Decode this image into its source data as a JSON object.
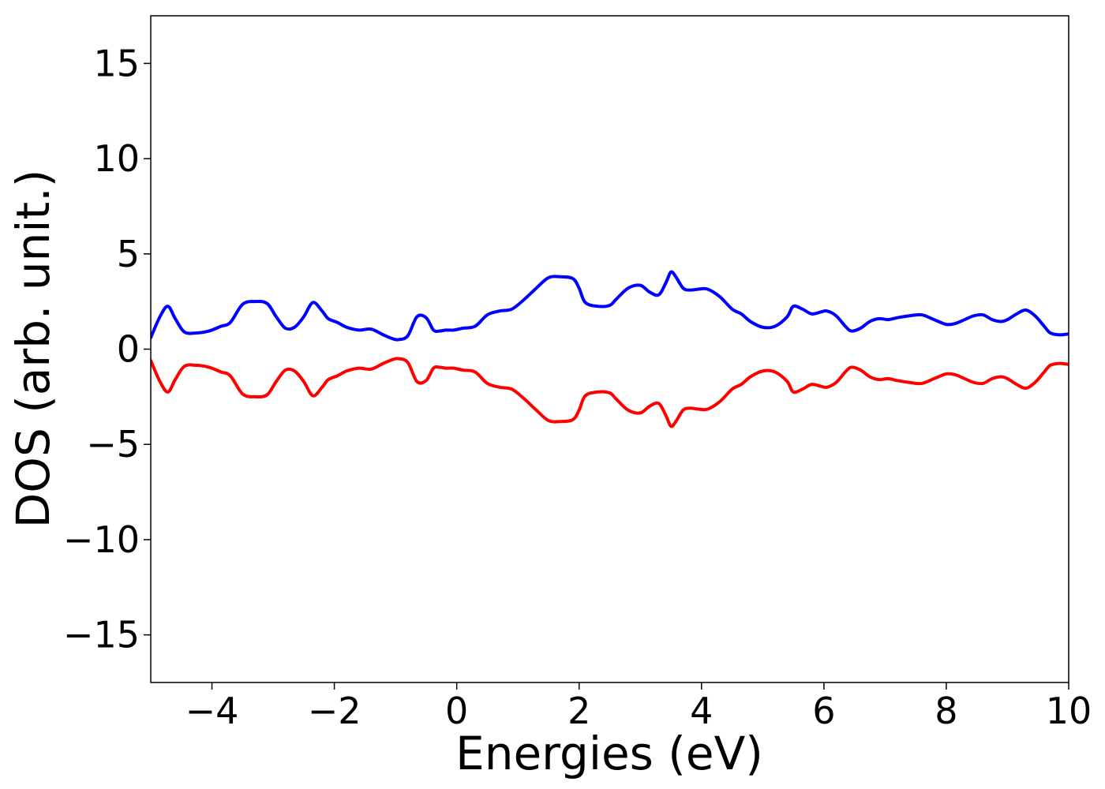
{
  "chart_data": {
    "type": "line",
    "title": "",
    "xlabel": "Energies (eV)",
    "ylabel": "DOS (arb. unit.)",
    "xlim": [
      -5,
      10
    ],
    "ylim": [
      -17.5,
      17.5
    ],
    "xticks": [
      -4,
      -2,
      0,
      2,
      4,
      6,
      8,
      10
    ],
    "yticks": [
      -15,
      -10,
      -5,
      0,
      5,
      10,
      15
    ],
    "xtick_labels": [
      "−4",
      "−2",
      "0",
      "2",
      "4",
      "6",
      "8",
      "10"
    ],
    "ytick_labels": [
      "−15",
      "−10",
      "−5",
      "0",
      "5",
      "10",
      "15"
    ],
    "grid": false,
    "legend": "none",
    "series": [
      {
        "color": "#0000ff",
        "x": [
          -5.0,
          -4.85,
          -4.72,
          -4.6,
          -4.45,
          -4.25,
          -4.05,
          -3.85,
          -3.7,
          -3.5,
          -3.3,
          -3.1,
          -2.95,
          -2.8,
          -2.65,
          -2.5,
          -2.35,
          -2.2,
          -2.1,
          -1.95,
          -1.8,
          -1.6,
          -1.4,
          -1.2,
          -1.05,
          -0.95,
          -0.8,
          -0.65,
          -0.5,
          -0.38,
          -0.28,
          -0.18,
          -0.05,
          0.1,
          0.3,
          0.5,
          0.7,
          0.9,
          1.1,
          1.3,
          1.5,
          1.7,
          1.9,
          2.0,
          2.1,
          2.3,
          2.5,
          2.6,
          2.8,
          3.0,
          3.15,
          3.3,
          3.42,
          3.5,
          3.58,
          3.7,
          3.82,
          3.95,
          4.1,
          4.3,
          4.5,
          4.65,
          4.8,
          5.0,
          5.2,
          5.4,
          5.5,
          5.65,
          5.8,
          5.95,
          6.05,
          6.2,
          6.35,
          6.45,
          6.6,
          6.75,
          6.9,
          7.05,
          7.2,
          7.4,
          7.6,
          7.8,
          8.0,
          8.15,
          8.3,
          8.45,
          8.6,
          8.75,
          8.9,
          9.0,
          9.15,
          9.3,
          9.45,
          9.6,
          9.7,
          9.85,
          10.0
        ],
        "y": [
          0.6,
          1.7,
          2.25,
          1.6,
          0.9,
          0.85,
          0.95,
          1.2,
          1.4,
          2.35,
          2.5,
          2.4,
          1.7,
          1.1,
          1.15,
          1.7,
          2.45,
          2.0,
          1.6,
          1.4,
          1.15,
          1.0,
          1.05,
          0.75,
          0.55,
          0.5,
          0.7,
          1.7,
          1.65,
          1.0,
          0.95,
          1.0,
          1.0,
          1.1,
          1.2,
          1.8,
          2.0,
          2.1,
          2.6,
          3.2,
          3.75,
          3.8,
          3.7,
          3.2,
          2.45,
          2.25,
          2.3,
          2.6,
          3.2,
          3.35,
          3.0,
          2.85,
          3.5,
          4.05,
          3.8,
          3.2,
          3.1,
          3.15,
          3.15,
          2.75,
          2.1,
          1.85,
          1.45,
          1.15,
          1.2,
          1.7,
          2.25,
          2.1,
          1.85,
          1.95,
          2.0,
          1.75,
          1.2,
          0.95,
          1.1,
          1.45,
          1.6,
          1.55,
          1.65,
          1.75,
          1.8,
          1.55,
          1.3,
          1.35,
          1.55,
          1.75,
          1.8,
          1.55,
          1.45,
          1.55,
          1.85,
          2.05,
          1.75,
          1.2,
          0.85,
          0.75,
          0.8
        ]
      },
      {
        "color": "#ff0000",
        "x": [
          -5.0,
          -4.85,
          -4.72,
          -4.6,
          -4.45,
          -4.25,
          -4.05,
          -3.85,
          -3.7,
          -3.5,
          -3.3,
          -3.1,
          -2.95,
          -2.8,
          -2.65,
          -2.5,
          -2.35,
          -2.2,
          -2.1,
          -1.95,
          -1.8,
          -1.6,
          -1.4,
          -1.2,
          -1.05,
          -0.95,
          -0.8,
          -0.65,
          -0.5,
          -0.38,
          -0.28,
          -0.18,
          -0.05,
          0.1,
          0.3,
          0.5,
          0.7,
          0.9,
          1.1,
          1.3,
          1.5,
          1.7,
          1.9,
          2.0,
          2.1,
          2.3,
          2.5,
          2.6,
          2.8,
          3.0,
          3.15,
          3.3,
          3.42,
          3.5,
          3.58,
          3.7,
          3.82,
          3.95,
          4.1,
          4.3,
          4.5,
          4.65,
          4.8,
          5.0,
          5.2,
          5.4,
          5.5,
          5.65,
          5.8,
          5.95,
          6.05,
          6.2,
          6.35,
          6.45,
          6.6,
          6.75,
          6.9,
          7.05,
          7.2,
          7.4,
          7.6,
          7.8,
          8.0,
          8.15,
          8.3,
          8.45,
          8.6,
          8.75,
          8.9,
          9.0,
          9.15,
          9.3,
          9.45,
          9.6,
          9.7,
          9.85,
          10.0
        ],
        "y": [
          -0.6,
          -1.7,
          -2.25,
          -1.6,
          -0.9,
          -0.85,
          -0.95,
          -1.2,
          -1.4,
          -2.35,
          -2.5,
          -2.4,
          -1.7,
          -1.1,
          -1.15,
          -1.7,
          -2.45,
          -2.0,
          -1.6,
          -1.4,
          -1.15,
          -1.0,
          -1.05,
          -0.75,
          -0.55,
          -0.5,
          -0.7,
          -1.7,
          -1.65,
          -1.0,
          -0.95,
          -1.0,
          -1.0,
          -1.1,
          -1.2,
          -1.8,
          -2.0,
          -2.1,
          -2.6,
          -3.2,
          -3.75,
          -3.8,
          -3.7,
          -3.2,
          -2.45,
          -2.25,
          -2.3,
          -2.6,
          -3.2,
          -3.35,
          -3.0,
          -2.85,
          -3.5,
          -4.05,
          -3.8,
          -3.2,
          -3.1,
          -3.15,
          -3.15,
          -2.75,
          -2.1,
          -1.85,
          -1.45,
          -1.15,
          -1.2,
          -1.7,
          -2.25,
          -2.1,
          -1.85,
          -1.95,
          -2.0,
          -1.75,
          -1.2,
          -0.95,
          -1.1,
          -1.45,
          -1.6,
          -1.55,
          -1.65,
          -1.75,
          -1.8,
          -1.55,
          -1.3,
          -1.35,
          -1.55,
          -1.75,
          -1.8,
          -1.55,
          -1.45,
          -1.55,
          -1.85,
          -2.05,
          -1.75,
          -1.2,
          -0.85,
          -0.75,
          -0.8
        ]
      }
    ]
  }
}
